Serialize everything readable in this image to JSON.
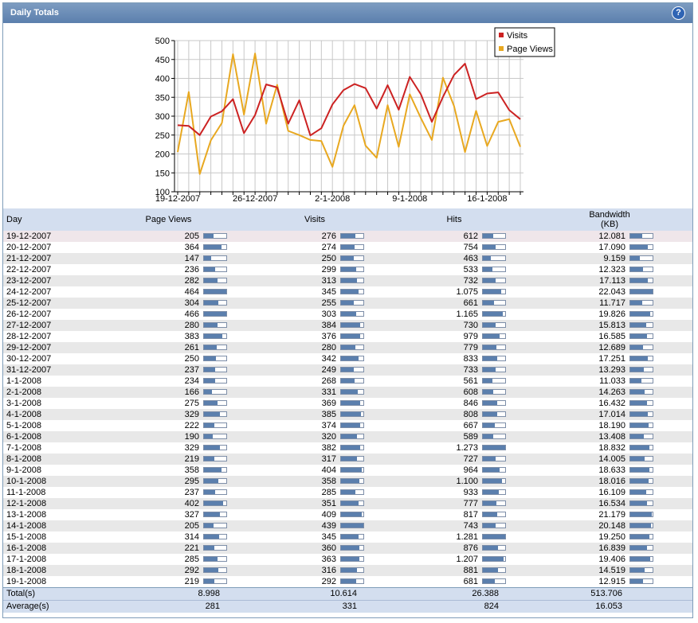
{
  "panel": {
    "title": "Daily Totals",
    "help_label": "?"
  },
  "chart_data": {
    "type": "line",
    "x": [
      "19-12-2007",
      "20-12-2007",
      "21-12-2007",
      "22-12-2007",
      "23-12-2007",
      "24-12-2007",
      "25-12-2007",
      "26-12-2007",
      "27-12-2007",
      "28-12-2007",
      "29-12-2007",
      "30-12-2007",
      "31-12-2007",
      "1-1-2008",
      "2-1-2008",
      "3-1-2008",
      "4-1-2008",
      "5-1-2008",
      "6-1-2008",
      "7-1-2008",
      "8-1-2008",
      "9-1-2008",
      "10-1-2008",
      "11-1-2008",
      "12-1-2008",
      "13-1-2008",
      "14-1-2008",
      "15-1-2008",
      "16-1-2008",
      "17-1-2008",
      "18-1-2008",
      "19-1-2008"
    ],
    "x_tick_labels": [
      "19-12-2007",
      "26-12-2007",
      "2-1-2008",
      "9-1-2008",
      "16-1-2008"
    ],
    "ylim": [
      100,
      500
    ],
    "y_ticks": [
      100,
      150,
      200,
      250,
      300,
      350,
      400,
      450,
      500
    ],
    "grid": true,
    "legend": "top-right",
    "series": [
      {
        "name": "Visits",
        "color": "#cc2222",
        "values": [
          276,
          274,
          250,
          299,
          313,
          345,
          255,
          303,
          384,
          376,
          280,
          342,
          249,
          268,
          331,
          369,
          385,
          374,
          320,
          382,
          317,
          404,
          358,
          285,
          351,
          409,
          439,
          345,
          360,
          363,
          316,
          292
        ]
      },
      {
        "name": "Page Views",
        "color": "#e8a820",
        "values": [
          205,
          364,
          147,
          236,
          282,
          464,
          304,
          466,
          280,
          383,
          261,
          250,
          237,
          234,
          166,
          275,
          329,
          222,
          190,
          329,
          219,
          358,
          295,
          237,
          402,
          327,
          205,
          314,
          221,
          285,
          292,
          219
        ]
      }
    ]
  },
  "table": {
    "headers": {
      "day": "Day",
      "page_views": "Page Views",
      "visits": "Visits",
      "hits": "Hits",
      "bandwidth": "Bandwidth",
      "bandwidth_unit": "(KB)"
    },
    "bar_max": {
      "page_views": 466,
      "visits": 439,
      "hits": 1281,
      "bandwidth": 22043
    },
    "rows": [
      {
        "day": "19-12-2007",
        "page_views": "205",
        "visits": "276",
        "hits": "612",
        "bandwidth": "12.081"
      },
      {
        "day": "20-12-2007",
        "page_views": "364",
        "visits": "274",
        "hits": "754",
        "bandwidth": "17.090"
      },
      {
        "day": "21-12-2007",
        "page_views": "147",
        "visits": "250",
        "hits": "463",
        "bandwidth": "9.159"
      },
      {
        "day": "22-12-2007",
        "page_views": "236",
        "visits": "299",
        "hits": "533",
        "bandwidth": "12.323"
      },
      {
        "day": "23-12-2007",
        "page_views": "282",
        "visits": "313",
        "hits": "732",
        "bandwidth": "17.113"
      },
      {
        "day": "24-12-2007",
        "page_views": "464",
        "visits": "345",
        "hits": "1.075",
        "bandwidth": "22.043"
      },
      {
        "day": "25-12-2007",
        "page_views": "304",
        "visits": "255",
        "hits": "661",
        "bandwidth": "11.717"
      },
      {
        "day": "26-12-2007",
        "page_views": "466",
        "visits": "303",
        "hits": "1.165",
        "bandwidth": "19.826"
      },
      {
        "day": "27-12-2007",
        "page_views": "280",
        "visits": "384",
        "hits": "730",
        "bandwidth": "15.813"
      },
      {
        "day": "28-12-2007",
        "page_views": "383",
        "visits": "376",
        "hits": "979",
        "bandwidth": "16.585"
      },
      {
        "day": "29-12-2007",
        "page_views": "261",
        "visits": "280",
        "hits": "779",
        "bandwidth": "12.689"
      },
      {
        "day": "30-12-2007",
        "page_views": "250",
        "visits": "342",
        "hits": "833",
        "bandwidth": "17.251"
      },
      {
        "day": "31-12-2007",
        "page_views": "237",
        "visits": "249",
        "hits": "733",
        "bandwidth": "13.293"
      },
      {
        "day": "1-1-2008",
        "page_views": "234",
        "visits": "268",
        "hits": "561",
        "bandwidth": "11.033"
      },
      {
        "day": "2-1-2008",
        "page_views": "166",
        "visits": "331",
        "hits": "608",
        "bandwidth": "14.263"
      },
      {
        "day": "3-1-2008",
        "page_views": "275",
        "visits": "369",
        "hits": "846",
        "bandwidth": "16.432"
      },
      {
        "day": "4-1-2008",
        "page_views": "329",
        "visits": "385",
        "hits": "808",
        "bandwidth": "17.014"
      },
      {
        "day": "5-1-2008",
        "page_views": "222",
        "visits": "374",
        "hits": "667",
        "bandwidth": "18.190"
      },
      {
        "day": "6-1-2008",
        "page_views": "190",
        "visits": "320",
        "hits": "589",
        "bandwidth": "13.408"
      },
      {
        "day": "7-1-2008",
        "page_views": "329",
        "visits": "382",
        "hits": "1.273",
        "bandwidth": "18.832"
      },
      {
        "day": "8-1-2008",
        "page_views": "219",
        "visits": "317",
        "hits": "727",
        "bandwidth": "14.005"
      },
      {
        "day": "9-1-2008",
        "page_views": "358",
        "visits": "404",
        "hits": "964",
        "bandwidth": "18.633"
      },
      {
        "day": "10-1-2008",
        "page_views": "295",
        "visits": "358",
        "hits": "1.100",
        "bandwidth": "18.016"
      },
      {
        "day": "11-1-2008",
        "page_views": "237",
        "visits": "285",
        "hits": "933",
        "bandwidth": "16.109"
      },
      {
        "day": "12-1-2008",
        "page_views": "402",
        "visits": "351",
        "hits": "777",
        "bandwidth": "16.534"
      },
      {
        "day": "13-1-2008",
        "page_views": "327",
        "visits": "409",
        "hits": "817",
        "bandwidth": "21.179"
      },
      {
        "day": "14-1-2008",
        "page_views": "205",
        "visits": "439",
        "hits": "743",
        "bandwidth": "20.148"
      },
      {
        "day": "15-1-2008",
        "page_views": "314",
        "visits": "345",
        "hits": "1.281",
        "bandwidth": "19.250"
      },
      {
        "day": "16-1-2008",
        "page_views": "221",
        "visits": "360",
        "hits": "876",
        "bandwidth": "16.839"
      },
      {
        "day": "17-1-2008",
        "page_views": "285",
        "visits": "363",
        "hits": "1.207",
        "bandwidth": "19.406"
      },
      {
        "day": "18-1-2008",
        "page_views": "292",
        "visits": "316",
        "hits": "881",
        "bandwidth": "14.519"
      },
      {
        "day": "19-1-2008",
        "page_views": "219",
        "visits": "292",
        "hits": "681",
        "bandwidth": "12.915"
      }
    ],
    "totals": {
      "label": "Total(s)",
      "page_views": "8.998",
      "visits": "10.614",
      "hits": "26.388",
      "bandwidth": "513.706"
    },
    "averages": {
      "label": "Average(s)",
      "page_views": "281",
      "visits": "331",
      "hits": "824",
      "bandwidth": "16.053"
    }
  }
}
